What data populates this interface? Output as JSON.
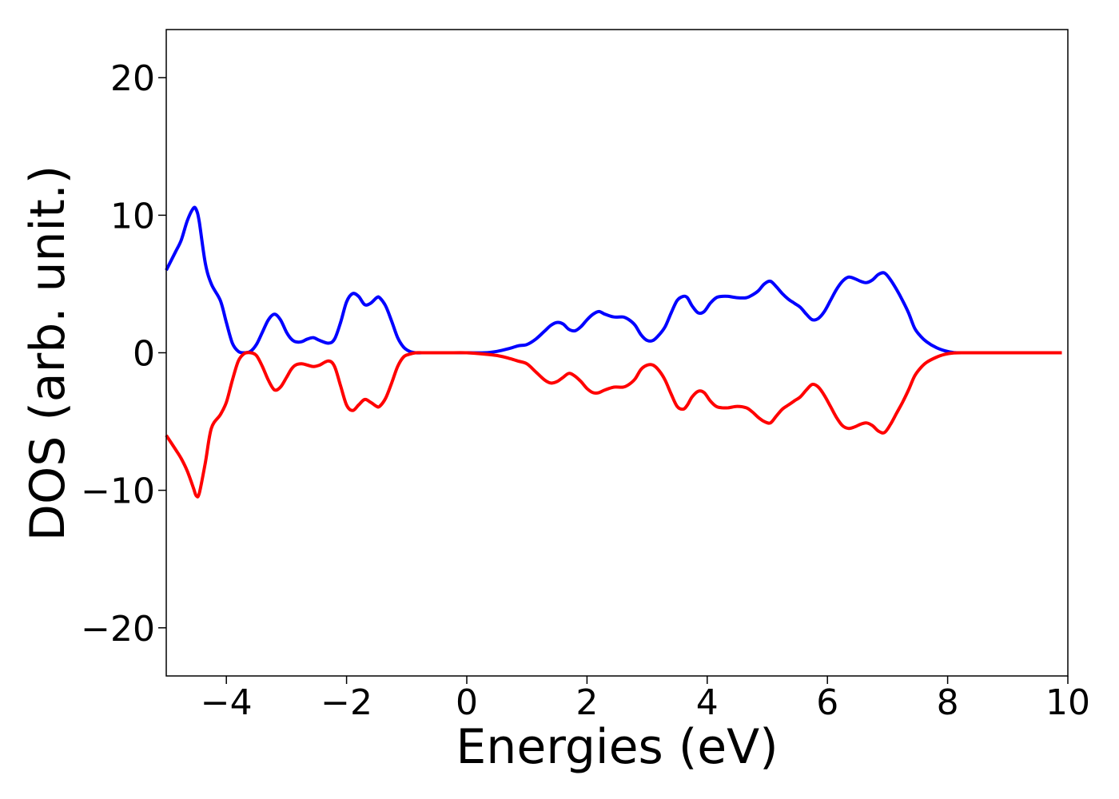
{
  "chart_data": {
    "type": "line",
    "title": "",
    "xlabel": "Energies (eV)",
    "ylabel": "DOS (arb. unit.)",
    "xlim": [
      -5.0,
      10.0
    ],
    "ylim": [
      -23.5,
      23.5
    ],
    "xticks": [
      -4,
      -2,
      0,
      2,
      4,
      6,
      8,
      10
    ],
    "xtick_labels": [
      "−4",
      "−2",
      "0",
      "2",
      "4",
      "6",
      "8",
      "10"
    ],
    "yticks": [
      -20,
      -10,
      0,
      10,
      20
    ],
    "ytick_labels": [
      "−20",
      "−10",
      "0",
      "10",
      "20"
    ],
    "grid": false,
    "legend": "none",
    "series": [
      {
        "color": "#0000ff",
        "x": [
          -5.0,
          -4.85,
          -4.75,
          -4.65,
          -4.55,
          -4.5,
          -4.45,
          -4.35,
          -4.25,
          -4.1,
          -4.0,
          -3.9,
          -3.8,
          -3.7,
          -3.6,
          -3.5,
          -3.4,
          -3.3,
          -3.2,
          -3.1,
          -3.0,
          -2.92,
          -2.85,
          -2.75,
          -2.65,
          -2.55,
          -2.45,
          -2.3,
          -2.2,
          -2.1,
          -2.0,
          -1.9,
          -1.8,
          -1.7,
          -1.6,
          -1.5,
          -1.45,
          -1.35,
          -1.25,
          -1.15,
          -1.05,
          -0.95,
          -0.85,
          -0.75,
          -0.65,
          -0.55,
          -0.45,
          -0.3,
          0.0,
          0.3,
          0.5,
          0.7,
          0.85,
          1.0,
          1.15,
          1.3,
          1.4,
          1.5,
          1.6,
          1.7,
          1.8,
          1.9,
          2.0,
          2.1,
          2.2,
          2.3,
          2.45,
          2.6,
          2.7,
          2.8,
          2.9,
          3.0,
          3.1,
          3.2,
          3.3,
          3.4,
          3.5,
          3.6,
          3.67,
          3.75,
          3.85,
          3.95,
          4.05,
          4.15,
          4.25,
          4.35,
          4.5,
          4.65,
          4.75,
          4.85,
          4.95,
          5.05,
          5.15,
          5.25,
          5.35,
          5.45,
          5.55,
          5.65,
          5.75,
          5.85,
          5.95,
          6.05,
          6.15,
          6.25,
          6.35,
          6.45,
          6.55,
          6.65,
          6.75,
          6.85,
          6.95,
          7.05,
          7.15,
          7.25,
          7.35,
          7.45,
          7.55,
          7.65,
          7.8,
          7.95,
          8.1,
          8.3,
          8.6,
          9.0,
          9.5,
          9.9
        ],
        "y": [
          6.0,
          7.3,
          8.2,
          9.6,
          10.5,
          10.4,
          9.5,
          6.5,
          5.0,
          3.8,
          2.2,
          0.7,
          0.1,
          0.0,
          0.1,
          0.6,
          1.5,
          2.4,
          2.8,
          2.4,
          1.5,
          1.0,
          0.8,
          0.8,
          1.0,
          1.1,
          0.9,
          0.7,
          1.0,
          2.2,
          3.7,
          4.3,
          4.1,
          3.5,
          3.6,
          4.0,
          4.0,
          3.4,
          2.3,
          1.1,
          0.4,
          0.1,
          0.0,
          0.0,
          0.0,
          0.0,
          0.0,
          0.0,
          0.0,
          0.0,
          0.1,
          0.3,
          0.5,
          0.6,
          1.0,
          1.6,
          2.0,
          2.2,
          2.1,
          1.7,
          1.6,
          1.9,
          2.4,
          2.8,
          3.0,
          2.8,
          2.6,
          2.6,
          2.4,
          2.0,
          1.3,
          0.9,
          0.9,
          1.3,
          1.9,
          2.9,
          3.8,
          4.1,
          4.0,
          3.4,
          2.9,
          3.0,
          3.6,
          4.0,
          4.1,
          4.1,
          4.0,
          4.0,
          4.2,
          4.5,
          5.0,
          5.2,
          4.8,
          4.3,
          3.9,
          3.6,
          3.3,
          2.8,
          2.4,
          2.5,
          3.0,
          3.8,
          4.6,
          5.2,
          5.5,
          5.4,
          5.2,
          5.1,
          5.3,
          5.7,
          5.8,
          5.3,
          4.6,
          3.8,
          2.9,
          1.8,
          1.2,
          0.8,
          0.4,
          0.15,
          0.02,
          0.0,
          0.0,
          0.0,
          0.0,
          0.0
        ]
      },
      {
        "color": "#ff0000",
        "x": [
          -5.0,
          -4.85,
          -4.75,
          -4.65,
          -4.55,
          -4.5,
          -4.45,
          -4.35,
          -4.25,
          -4.1,
          -4.0,
          -3.9,
          -3.8,
          -3.7,
          -3.6,
          -3.5,
          -3.4,
          -3.3,
          -3.2,
          -3.1,
          -3.0,
          -2.92,
          -2.85,
          -2.75,
          -2.65,
          -2.55,
          -2.45,
          -2.3,
          -2.2,
          -2.1,
          -2.0,
          -1.9,
          -1.8,
          -1.7,
          -1.6,
          -1.5,
          -1.45,
          -1.35,
          -1.25,
          -1.15,
          -1.05,
          -0.95,
          -0.85,
          -0.75,
          -0.65,
          -0.55,
          -0.45,
          -0.3,
          0.0,
          0.3,
          0.5,
          0.7,
          0.85,
          1.0,
          1.15,
          1.3,
          1.4,
          1.5,
          1.6,
          1.7,
          1.8,
          1.9,
          2.0,
          2.1,
          2.2,
          2.3,
          2.45,
          2.6,
          2.7,
          2.8,
          2.9,
          3.0,
          3.1,
          3.2,
          3.3,
          3.4,
          3.5,
          3.6,
          3.67,
          3.75,
          3.85,
          3.95,
          4.05,
          4.15,
          4.25,
          4.35,
          4.5,
          4.65,
          4.75,
          4.85,
          4.95,
          5.05,
          5.15,
          5.25,
          5.35,
          5.45,
          5.55,
          5.65,
          5.75,
          5.85,
          5.95,
          6.05,
          6.15,
          6.25,
          6.35,
          6.45,
          6.55,
          6.65,
          6.75,
          6.85,
          6.95,
          7.05,
          7.15,
          7.25,
          7.35,
          7.45,
          7.55,
          7.65,
          7.8,
          7.95,
          8.1,
          8.3,
          8.6,
          9.0,
          9.5,
          9.9
        ],
        "y": [
          -6.0,
          -7.0,
          -7.7,
          -8.6,
          -9.8,
          -10.4,
          -10.2,
          -8.0,
          -5.5,
          -4.5,
          -3.6,
          -2.0,
          -0.6,
          -0.05,
          0.0,
          -0.2,
          -1.0,
          -2.0,
          -2.7,
          -2.5,
          -1.8,
          -1.2,
          -0.9,
          -0.8,
          -0.9,
          -1.0,
          -0.9,
          -0.6,
          -1.0,
          -2.4,
          -3.8,
          -4.2,
          -3.8,
          -3.4,
          -3.6,
          -3.9,
          -3.9,
          -3.3,
          -2.2,
          -1.0,
          -0.3,
          -0.1,
          0.0,
          0.0,
          0.0,
          0.0,
          0.0,
          0.0,
          0.0,
          -0.1,
          -0.2,
          -0.4,
          -0.6,
          -0.8,
          -1.4,
          -2.0,
          -2.2,
          -2.1,
          -1.8,
          -1.5,
          -1.7,
          -2.1,
          -2.6,
          -2.9,
          -2.9,
          -2.7,
          -2.5,
          -2.5,
          -2.3,
          -1.9,
          -1.2,
          -0.9,
          -0.9,
          -1.3,
          -2.0,
          -3.0,
          -3.9,
          -4.1,
          -3.8,
          -3.2,
          -2.8,
          -2.9,
          -3.5,
          -3.9,
          -4.0,
          -4.0,
          -3.9,
          -4.0,
          -4.3,
          -4.7,
          -5.0,
          -5.1,
          -4.6,
          -4.1,
          -3.8,
          -3.5,
          -3.2,
          -2.7,
          -2.3,
          -2.5,
          -3.1,
          -3.9,
          -4.7,
          -5.3,
          -5.5,
          -5.4,
          -5.2,
          -5.1,
          -5.3,
          -5.7,
          -5.8,
          -5.2,
          -4.4,
          -3.6,
          -2.7,
          -1.7,
          -1.1,
          -0.7,
          -0.35,
          -0.12,
          -0.02,
          0.0,
          0.0,
          0.0,
          0.0,
          0.0
        ]
      }
    ]
  }
}
